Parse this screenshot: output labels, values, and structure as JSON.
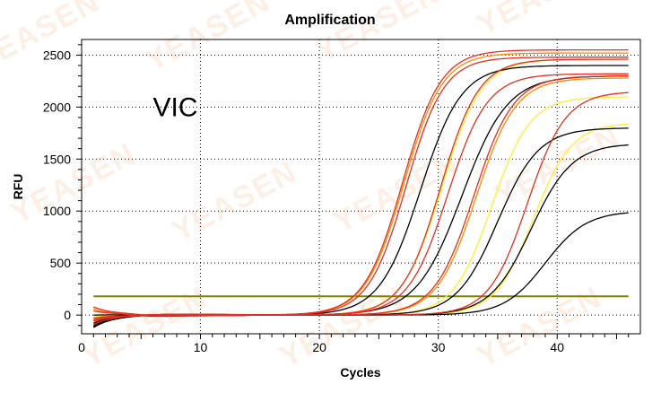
{
  "chart_data": {
    "type": "line",
    "title": "Amplification",
    "xlabel": "Cycles",
    "ylabel": "RFU",
    "xlim": [
      0,
      47
    ],
    "ylim": [
      -180,
      2650
    ],
    "xticks": [
      0,
      10,
      20,
      30,
      40
    ],
    "yticks": [
      0,
      500,
      1000,
      1500,
      2000,
      2500
    ],
    "grid": true,
    "legend": "none",
    "annotations": [
      {
        "text": "VIC",
        "x": 6,
        "y": 2000
      }
    ],
    "watermark_text": "YEASEN",
    "threshold": {
      "value": 180,
      "color": "#808000"
    },
    "colors": {
      "red": "#e03020",
      "orange": "#ff8800",
      "yellow": "#ffee33",
      "black": "#000000",
      "threshold": "#808000",
      "grid": "#000000"
    },
    "series_params": [
      {
        "color": "red",
        "plateau": 2550,
        "midpoint": 27.0,
        "slope": 0.62,
        "start": 80
      },
      {
        "color": "orange",
        "plateau": 2520,
        "midpoint": 27.1,
        "slope": 0.62,
        "start": 60
      },
      {
        "color": "red",
        "plateau": 2480,
        "midpoint": 27.3,
        "slope": 0.63,
        "start": 40
      },
      {
        "color": "black",
        "plateau": 2400,
        "midpoint": 28.5,
        "slope": 0.58,
        "start": 0
      },
      {
        "color": "yellow",
        "plateau": 2460,
        "midpoint": 30.3,
        "slope": 0.6,
        "start": -20
      },
      {
        "color": "red",
        "plateau": 2460,
        "midpoint": 30.2,
        "slope": 0.62,
        "start": -50
      },
      {
        "color": "red",
        "plateau": 2320,
        "midpoint": 30.8,
        "slope": 0.6,
        "start": -30
      },
      {
        "color": "black",
        "plateau": 2300,
        "midpoint": 32.0,
        "slope": 0.52,
        "start": -80
      },
      {
        "color": "red",
        "plateau": 2300,
        "midpoint": 33.0,
        "slope": 0.6,
        "start": -60
      },
      {
        "color": "orange",
        "plateau": 2280,
        "midpoint": 33.2,
        "slope": 0.6,
        "start": -40
      },
      {
        "color": "yellow",
        "plateau": 2100,
        "midpoint": 34.5,
        "slope": 0.62,
        "start": -100
      },
      {
        "color": "black",
        "plateau": 1800,
        "midpoint": 35.0,
        "slope": 0.58,
        "start": -110
      },
      {
        "color": "red",
        "plateau": 2150,
        "midpoint": 37.5,
        "slope": 0.62,
        "start": -90
      },
      {
        "color": "yellow",
        "plateau": 1850,
        "midpoint": 38.0,
        "slope": 0.62,
        "start": -70
      },
      {
        "color": "black",
        "plateau": 1650,
        "midpoint": 37.8,
        "slope": 0.58,
        "start": -120
      },
      {
        "color": "black",
        "plateau": 1000,
        "midpoint": 39.0,
        "slope": 0.58,
        "start": -100
      }
    ]
  }
}
